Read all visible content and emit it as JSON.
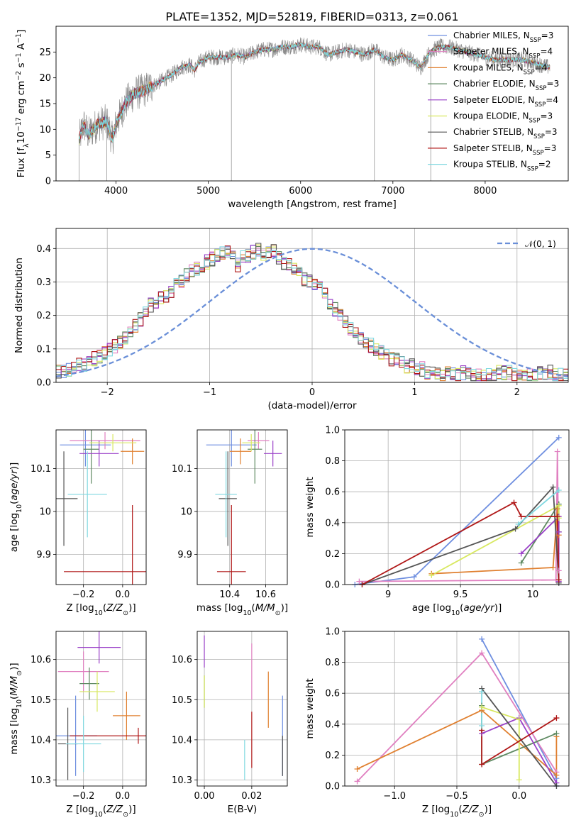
{
  "figure_title": "PLATE=1352, MJD=52819, FIBERID=0313, z=0.061",
  "colors": {
    "Chabrier MILES": "#6f8fe0",
    "Salpeter MILES": "#e07fc0",
    "Kroupa MILES": "#e08030",
    "Chabrier ELODIE": "#5f8a62",
    "Salpeter ELODIE": "#9a40c8",
    "Kroupa ELODIE": "#d8e860",
    "Chabrier STELIB": "#555555",
    "Salpeter STELIB": "#b01818",
    "Kroupa STELIB": "#80d8e0",
    "observed": "#888888",
    "normal": "#6a8fd8",
    "grid": "#b0b0b0"
  },
  "chart_data": [
    {
      "id": "spectrum",
      "type": "line",
      "title": "PLATE=1352, MJD=52819, FIBERID=0313, z=0.061",
      "xlabel": "wavelength [Angstrom, rest frame]",
      "ylabel": "Flux [f_λ 10^-17 erg cm^-2 s^-1 A^-1]",
      "xlim": [
        3350,
        8900
      ],
      "ylim": [
        0,
        30
      ],
      "xticks": [
        4000,
        5000,
        6000,
        7000,
        8000
      ],
      "yticks": [
        0,
        5,
        10,
        15,
        20,
        25
      ],
      "grid": false,
      "legend_position": "top-right",
      "legend": [
        {
          "name": "Chabrier MILES",
          "label": "Chabrier MILES, N_SSP=3",
          "main": "Chabrier MILES, N",
          "sub": "SSP",
          "tail": "=3"
        },
        {
          "name": "Salpeter MILES",
          "label": "Salpeter MILES, N_SSP=4",
          "main": "Salpeter MILES, N",
          "sub": "SSP",
          "tail": "=4"
        },
        {
          "name": "Kroupa MILES",
          "label": "Kroupa MILES, N_SSP=4",
          "main": "Kroupa MILES, N",
          "sub": "SSP",
          "tail": "=4"
        },
        {
          "name": "Chabrier ELODIE",
          "label": "Chabrier ELODIE, N_SSP=3",
          "main": "Chabrier ELODIE, N",
          "sub": "SSP",
          "tail": "=3"
        },
        {
          "name": "Salpeter ELODIE",
          "label": "Salpeter ELODIE, N_SSP=4",
          "main": "Salpeter ELODIE, N",
          "sub": "SSP",
          "tail": "=4"
        },
        {
          "name": "Kroupa ELODIE",
          "label": "Kroupa ELODIE, N_SSP=3",
          "main": "Kroupa ELODIE, N",
          "sub": "SSP",
          "tail": "=3"
        },
        {
          "name": "Chabrier STELIB",
          "label": "Chabrier STELIB, N_SSP=3",
          "main": "Chabrier STELIB, N",
          "sub": "SSP",
          "tail": "=3"
        },
        {
          "name": "Salpeter STELIB",
          "label": "Salpeter STELIB, N_SSP=3",
          "main": "Salpeter STELIB, N",
          "sub": "SSP",
          "tail": "=3"
        },
        {
          "name": "Kroupa STELIB",
          "label": "Kroupa STELIB, N_SSP=2",
          "main": "Kroupa STELIB, N",
          "sub": "SSP",
          "tail": "=2"
        }
      ],
      "observed_range": [
        3600,
        8700
      ],
      "continuum_x": [
        3600,
        3650,
        3700,
        3800,
        3900,
        3960,
        4000,
        4100,
        4200,
        4300,
        4400,
        4500,
        4600,
        4700,
        4800,
        4850,
        4900,
        5000,
        5100,
        5200,
        5300,
        5400,
        5500,
        5600,
        5700,
        5800,
        5900,
        6000,
        6100,
        6200,
        6300,
        6400,
        6500,
        6600,
        6700,
        6800,
        6900,
        7000,
        7100,
        7200,
        7300,
        7400,
        7500,
        7600,
        7700,
        7800,
        7900,
        8000,
        8100,
        8200,
        8300,
        8400,
        8500,
        8600,
        8700
      ],
      "continuum_y": [
        8.0,
        11.0,
        9.0,
        11.0,
        11.5,
        8.0,
        11.0,
        15.0,
        17.0,
        17.5,
        18.5,
        19.5,
        20.5,
        22.0,
        22.5,
        21.5,
        23.0,
        24.0,
        24.0,
        24.0,
        24.5,
        24.0,
        25.0,
        25.5,
        25.5,
        26.0,
        26.0,
        26.5,
        26.0,
        26.0,
        24.5,
        25.0,
        25.5,
        25.0,
        24.5,
        25.5,
        24.0,
        23.5,
        24.5,
        23.5,
        22.0,
        25.0,
        26.0,
        26.0,
        25.5,
        25.0,
        24.5,
        24.0,
        23.5,
        23.5,
        23.5,
        23.5,
        23.0,
        22.5,
        22.0
      ],
      "absorption_spikes": [
        {
          "x": 5250,
          "y": 0
        },
        {
          "x": 6800,
          "y": 0
        },
        {
          "x": 7410,
          "y": 0
        },
        {
          "x": 3600,
          "y": 0
        },
        {
          "x": 3900,
          "y": 0
        }
      ]
    },
    {
      "id": "residual_hist",
      "type": "histogram",
      "xlabel": "(data-model)/error",
      "ylabel": "Normed distribution",
      "xlim": [
        -2.5,
        2.5
      ],
      "ylim": [
        0,
        0.46
      ],
      "xticks": [
        -2,
        -1,
        0,
        1,
        2
      ],
      "yticks": [
        0.0,
        0.1,
        0.2,
        0.3,
        0.4
      ],
      "grid": true,
      "legend_position": "top-right",
      "reference_curve": {
        "name": "N(0,1)",
        "label": "𝒩(0, 1)",
        "mean": 0,
        "sigma": 1
      },
      "bin_width": 0.1,
      "base_heights": [
        0.03,
        0.03,
        0.04,
        0.05,
        0.05,
        0.05,
        0.06,
        0.07,
        0.08,
        0.09,
        0.1,
        0.11,
        0.12,
        0.13,
        0.15,
        0.17,
        0.19,
        0.21,
        0.23,
        0.24,
        0.25,
        0.26,
        0.27,
        0.29,
        0.3,
        0.32,
        0.33,
        0.34,
        0.35,
        0.36,
        0.37,
        0.38,
        0.39,
        0.39,
        0.38,
        0.35,
        0.38,
        0.38,
        0.39,
        0.4,
        0.38,
        0.39,
        0.39,
        0.37,
        0.36,
        0.35,
        0.34,
        0.33,
        0.31,
        0.3,
        0.29,
        0.28,
        0.26,
        0.24,
        0.22,
        0.2,
        0.18,
        0.16,
        0.15,
        0.13,
        0.12,
        0.11,
        0.1,
        0.09,
        0.08,
        0.07,
        0.07,
        0.06,
        0.05,
        0.05,
        0.04,
        0.04,
        0.03,
        0.03,
        0.03,
        0.02,
        0.03,
        0.03,
        0.02,
        0.03,
        0.03,
        0.02,
        0.02,
        0.02,
        0.02,
        0.02,
        0.03,
        0.03,
        0.03,
        0.02,
        0.03,
        0.02,
        0.02,
        0.02,
        0.03,
        0.03,
        0.03,
        0.02,
        0.02,
        0.02
      ]
    },
    {
      "id": "age_vs_Z",
      "type": "errorbar",
      "xlabel": "Z [log10(Z/Z⊙)]",
      "ylabel": "age  [log10(age/yr)]",
      "xlim": [
        -0.34,
        0.12
      ],
      "ylim": [
        9.83,
        10.19
      ],
      "xticks": [
        -0.2,
        0.0
      ],
      "xtick_labels": [
        "−0.2",
        "0.0"
      ],
      "yticks": [
        9.9,
        10.0,
        10.1
      ],
      "grid": true,
      "points": [
        {
          "series": "Chabrier MILES",
          "x": -0.19,
          "xerr": 0.13,
          "y": 10.155,
          "yerr": 0.05
        },
        {
          "series": "Salpeter MILES",
          "x": -0.09,
          "xerr": 0.18,
          "y": 10.165,
          "yerr": 0.02
        },
        {
          "series": "Kroupa MILES",
          "x": 0.05,
          "xerr": 0.06,
          "y": 10.14,
          "yerr": 0.03
        },
        {
          "series": "Chabrier ELODIE",
          "x": -0.16,
          "xerr": 0.04,
          "y": 10.145,
          "yerr": 0.08
        },
        {
          "series": "Salpeter ELODIE",
          "x": -0.12,
          "xerr": 0.1,
          "y": 10.135,
          "yerr": 0.03
        },
        {
          "series": "Kroupa ELODIE",
          "x": -0.05,
          "xerr": 0.12,
          "y": 10.16,
          "yerr": 0.02
        },
        {
          "series": "Chabrier STELIB",
          "x": -0.3,
          "xerr": 0.07,
          "y": 10.03,
          "yerr": 0.11
        },
        {
          "series": "Salpeter STELIB",
          "x": 0.05,
          "xerr": 0.35,
          "y": 9.86,
          "yerr": 0.155
        },
        {
          "series": "Kroupa STELIB",
          "x": -0.18,
          "xerr": 0.1,
          "y": 10.04,
          "yerr": 0.1
        }
      ]
    },
    {
      "id": "age_vs_mass",
      "type": "errorbar",
      "xlabel": "mass [log10(M/M⊙)]",
      "ylabel": "",
      "xlim": [
        10.22,
        10.72
      ],
      "ylim": [
        9.83,
        10.19
      ],
      "xticks": [
        10.4,
        10.6
      ],
      "yticks": [
        9.9,
        10.0,
        10.1
      ],
      "grid": true,
      "points": [
        {
          "series": "Chabrier MILES",
          "x": 10.41,
          "xerr": 0.14,
          "y": 10.155,
          "yerr": 0.05
        },
        {
          "series": "Salpeter MILES",
          "x": 10.56,
          "xerr": 0.06,
          "y": 10.165,
          "yerr": 0.02
        },
        {
          "series": "Kroupa MILES",
          "x": 10.46,
          "xerr": 0.06,
          "y": 10.14,
          "yerr": 0.03
        },
        {
          "series": "Chabrier ELODIE",
          "x": 10.54,
          "xerr": 0.04,
          "y": 10.145,
          "yerr": 0.08
        },
        {
          "series": "Salpeter ELODIE",
          "x": 10.64,
          "xerr": 0.05,
          "y": 10.135,
          "yerr": 0.03
        },
        {
          "series": "Kroupa ELODIE",
          "x": 10.52,
          "xerr": 0.05,
          "y": 10.16,
          "yerr": 0.02
        },
        {
          "series": "Chabrier STELIB",
          "x": 10.39,
          "xerr": 0.05,
          "y": 10.03,
          "yerr": 0.11
        },
        {
          "series": "Salpeter STELIB",
          "x": 10.41,
          "xerr": 0.08,
          "y": 9.86,
          "yerr": 0.155
        },
        {
          "series": "Kroupa STELIB",
          "x": 10.38,
          "xerr": 0.06,
          "y": 10.04,
          "yerr": 0.1
        }
      ]
    },
    {
      "id": "weight_vs_age",
      "type": "line",
      "xlabel": "age  [log10(age/yr)]",
      "ylabel": "mass weight",
      "xlim": [
        8.7,
        10.25
      ],
      "ylim": [
        0,
        1.0
      ],
      "xticks": [
        9.0,
        9.5,
        10.0
      ],
      "yticks": [
        0.0,
        0.2,
        0.4,
        0.6,
        0.8,
        1.0
      ],
      "grid": true,
      "series": [
        {
          "name": "Chabrier MILES",
          "x": [
            8.77,
            9.18,
            10.18
          ],
          "y": [
            0.0,
            0.05,
            0.95
          ]
        },
        {
          "name": "Salpeter MILES",
          "x": [
            8.8,
            10.16,
            10.17,
            10.18
          ],
          "y": [
            0.02,
            0.03,
            0.86,
            0.09
          ]
        },
        {
          "name": "Kroupa MILES",
          "x": [
            9.3,
            10.14,
            10.17,
            10.18
          ],
          "y": [
            0.07,
            0.11,
            0.49,
            0.32
          ]
        },
        {
          "name": "Chabrier ELODIE",
          "x": [
            9.92,
            10.18,
            10.18
          ],
          "y": [
            0.14,
            0.52,
            0.34
          ]
        },
        {
          "name": "Salpeter ELODIE",
          "x": [
            9.92,
            10.18,
            10.18,
            10.18
          ],
          "y": [
            0.2,
            0.44,
            0.34,
            0.02
          ]
        },
        {
          "name": "Kroupa ELODIE",
          "x": [
            9.3,
            10.18,
            10.18
          ],
          "y": [
            0.06,
            0.51,
            0.43
          ]
        },
        {
          "name": "Chabrier STELIB",
          "x": [
            8.82,
            9.88,
            10.14,
            10.18
          ],
          "y": [
            0.0,
            0.36,
            0.63,
            0.01
          ]
        },
        {
          "name": "Salpeter STELIB",
          "x": [
            8.82,
            9.87,
            9.92,
            10.17,
            10.18
          ],
          "y": [
            0.0,
            0.53,
            0.44,
            0.44,
            0.03
          ]
        },
        {
          "name": "Kroupa STELIB",
          "x": [
            9.9,
            10.18
          ],
          "y": [
            0.39,
            0.61
          ]
        }
      ]
    },
    {
      "id": "mass_vs_Z",
      "type": "errorbar",
      "xlabel": "Z [log10(Z/Z⊙)]",
      "ylabel": "mass [log10(M/M⊙)]",
      "xlim": [
        -0.34,
        0.12
      ],
      "ylim": [
        10.285,
        10.67
      ],
      "xticks": [
        -0.2,
        0.0
      ],
      "xtick_labels": [
        "−0.2",
        "0.0"
      ],
      "yticks": [
        10.3,
        10.4,
        10.5,
        10.6
      ],
      "grid": true,
      "points": [
        {
          "series": "Chabrier MILES",
          "x": -0.24,
          "xerr": 0.11,
          "y": 10.41,
          "yerr": 0.1
        },
        {
          "series": "Salpeter MILES",
          "x": -0.2,
          "xerr": 0.13,
          "y": 10.57,
          "yerr": 0.05
        },
        {
          "series": "Kroupa MILES",
          "x": 0.02,
          "xerr": 0.07,
          "y": 10.46,
          "yerr": 0.06
        },
        {
          "series": "Chabrier ELODIE",
          "x": -0.17,
          "xerr": 0.05,
          "y": 10.54,
          "yerr": 0.04
        },
        {
          "series": "Salpeter ELODIE",
          "x": -0.12,
          "xerr": 0.11,
          "y": 10.63,
          "yerr": 0.04
        },
        {
          "series": "Kroupa ELODIE",
          "x": -0.13,
          "xerr": 0.09,
          "y": 10.52,
          "yerr": 0.05
        },
        {
          "series": "Chabrier STELIB",
          "x": -0.28,
          "xerr": 0.05,
          "y": 10.39,
          "yerr": 0.09
        },
        {
          "series": "Salpeter STELIB",
          "x": 0.08,
          "xerr": 0.35,
          "y": 10.41,
          "yerr": 0.02
        },
        {
          "series": "Kroupa STELIB",
          "x": -0.2,
          "xerr": 0.09,
          "y": 10.39,
          "yerr": 0.07
        }
      ]
    },
    {
      "id": "mass_vs_ebv",
      "type": "errorbar",
      "xlabel": "E(B-V)",
      "ylabel": "",
      "xlim": [
        -0.003,
        0.035
      ],
      "ylim": [
        10.285,
        10.67
      ],
      "xticks": [
        0.0,
        0.02
      ],
      "xtick_labels": [
        "0.00",
        "0.02"
      ],
      "yticks": [
        10.3,
        10.4,
        10.5,
        10.6
      ],
      "grid": true,
      "points": [
        {
          "series": "Chabrier MILES",
          "x": 0.033,
          "xerr": 0,
          "y": 10.41,
          "yerr": 0.1
        },
        {
          "series": "Salpeter MILES",
          "x": 0.02,
          "xerr": 0,
          "y": 10.57,
          "yerr": 0.07
        },
        {
          "series": "Kroupa MILES",
          "x": 0.027,
          "xerr": 0,
          "y": 10.5,
          "yerr": 0.07
        },
        {
          "series": "Chabrier ELODIE",
          "x": 0.0,
          "xerr": 0,
          "y": 10.52,
          "yerr": 0.04
        },
        {
          "series": "Salpeter ELODIE",
          "x": 0.0,
          "xerr": 0,
          "y": 10.62,
          "yerr": 0.04
        },
        {
          "series": "Kroupa ELODIE",
          "x": 0.0,
          "xerr": 0,
          "y": 10.52,
          "yerr": 0.04
        },
        {
          "series": "Chabrier STELIB",
          "x": 0.033,
          "xerr": 0,
          "y": 10.36,
          "yerr": 0.05
        },
        {
          "series": "Salpeter STELIB",
          "x": 0.02,
          "xerr": 0,
          "y": 10.4,
          "yerr": 0.07
        },
        {
          "series": "Kroupa STELIB",
          "x": 0.017,
          "xerr": 0,
          "y": 10.35,
          "yerr": 0.05
        }
      ]
    },
    {
      "id": "weight_vs_Z",
      "type": "line",
      "xlabel": "Z [log10(Z/Z⊙)]",
      "ylabel": "mass weight",
      "xlim": [
        -1.4,
        0.4
      ],
      "ylim": [
        0,
        1.0
      ],
      "xticks": [
        -1.0,
        -0.5,
        0.0
      ],
      "xtick_labels": [
        "−1.0",
        "−0.5",
        "0.0"
      ],
      "yticks": [
        0.0,
        0.2,
        0.4,
        0.6,
        0.8,
        1.0
      ],
      "grid": true,
      "series": [
        {
          "name": "Chabrier MILES",
          "x": [
            -0.3,
            0.3,
            0.3
          ],
          "y": [
            0.95,
            0.05,
            0.0
          ]
        },
        {
          "name": "Salpeter MILES",
          "x": [
            -1.3,
            -0.3,
            0.3
          ],
          "y": [
            0.03,
            0.86,
            0.09
          ]
        },
        {
          "name": "Kroupa MILES",
          "x": [
            -1.3,
            -0.3,
            0.3,
            0.3
          ],
          "y": [
            0.11,
            0.49,
            0.07,
            0.32
          ]
        },
        {
          "name": "Chabrier ELODIE",
          "x": [
            -0.3,
            -0.3,
            0.3
          ],
          "y": [
            0.52,
            0.14,
            0.34
          ]
        },
        {
          "name": "Salpeter ELODIE",
          "x": [
            -0.3,
            0.0,
            0.3
          ],
          "y": [
            0.34,
            0.44,
            0.02
          ]
        },
        {
          "name": "Kroupa ELODIE",
          "x": [
            -0.3,
            0.0,
            0.0
          ],
          "y": [
            0.51,
            0.43,
            0.04
          ]
        },
        {
          "name": "Chabrier STELIB",
          "x": [
            -0.3,
            0.3
          ],
          "y": [
            0.63,
            0.0
          ]
        },
        {
          "name": "Salpeter STELIB",
          "x": [
            -0.3,
            -0.3,
            0.3
          ],
          "y": [
            0.36,
            0.14,
            0.44
          ]
        },
        {
          "name": "Kroupa STELIB",
          "x": [
            -0.3,
            -0.3
          ],
          "y": [
            0.39,
            0.61
          ]
        }
      ]
    }
  ]
}
